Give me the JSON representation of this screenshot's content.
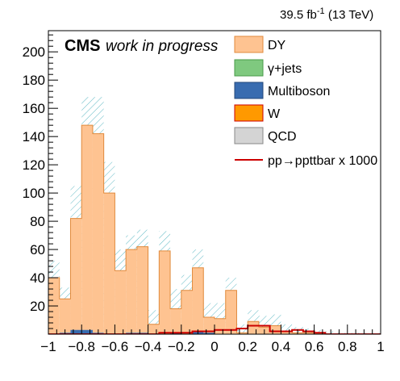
{
  "chart_data": {
    "type": "bar",
    "lumi_text": "39.5 fb",
    "lumi_exp": "-1",
    "lumi_energy": "(13 TeV)",
    "cms_label": "CMS",
    "cms_extra": "work in progress",
    "x_range": [
      -1,
      1
    ],
    "y_range": [
      0,
      215
    ],
    "x_ticks": [
      -1,
      -0.8,
      -0.6,
      -0.4,
      -0.2,
      0,
      0.2,
      0.4,
      0.6,
      0.8,
      1
    ],
    "x_tick_labels": [
      "−1",
      "−0.8",
      "−0.6",
      "−0.4",
      "−0.2",
      "0",
      "0.2",
      "0.4",
      "0.6",
      "0.8",
      "1"
    ],
    "y_ticks": [
      20,
      40,
      60,
      80,
      100,
      120,
      140,
      160,
      180,
      200
    ],
    "y_tick_labels": [
      "20",
      "40",
      "60",
      "80",
      "100",
      "120",
      "140",
      "160",
      "180",
      "200"
    ],
    "bin_edges": [
      -1.0,
      -0.9333,
      -0.8667,
      -0.8,
      -0.7333,
      -0.6667,
      -0.6,
      -0.5333,
      -0.4667,
      -0.4,
      -0.3333,
      -0.2667,
      -0.2,
      -0.1333,
      -0.0667,
      0.0,
      0.0667,
      0.1333,
      0.2,
      0.2667,
      0.3333,
      0.4,
      0.4667,
      0.5333,
      0.6,
      0.6667,
      0.7333,
      0.8,
      0.8667,
      0.9333,
      1.0
    ],
    "stack_total": [
      40,
      25,
      82,
      148,
      142,
      100,
      45,
      60,
      62,
      7,
      59,
      18,
      31,
      47,
      12,
      11,
      31,
      1,
      9,
      5,
      6,
      2,
      1,
      1,
      1,
      0,
      0,
      0,
      0,
      0
    ],
    "uncertainty_high": [
      52,
      33,
      105,
      168,
      168,
      122,
      60,
      70,
      74,
      17,
      73,
      32,
      42,
      60,
      22,
      22,
      40,
      7,
      17,
      13,
      14,
      7,
      5,
      4,
      3,
      2,
      1,
      1,
      1,
      1
    ],
    "series": [
      {
        "name": "DY",
        "color": "#fec391",
        "edge": "#e08a3c"
      },
      {
        "name": "γ+jets",
        "color": "#7fc97f",
        "edge": "#4a9a4a"
      },
      {
        "name": "Multiboson",
        "color": "#386cb0",
        "edge": "#24497a",
        "values": [
          0,
          1,
          3,
          3,
          1,
          0,
          0,
          1,
          1,
          0,
          0,
          1,
          0,
          2,
          1,
          0,
          0,
          0,
          0,
          0,
          0,
          0,
          0,
          0,
          0,
          0,
          0,
          0,
          0,
          0
        ]
      },
      {
        "name": "W",
        "color": "#ff9900",
        "edge": "#cc0000"
      },
      {
        "name": "QCD",
        "color": "#d4d4d4",
        "edge": "#888888"
      }
    ],
    "signal": {
      "name": "pp→ppttbar x 1000",
      "color": "#cc0000",
      "values": [
        0,
        0,
        0,
        0,
        0,
        0,
        0,
        0,
        0,
        0,
        1,
        1,
        1,
        2,
        2,
        3,
        3,
        4,
        6,
        6,
        2,
        2,
        3,
        2,
        1,
        0,
        0,
        0,
        0,
        0
      ]
    },
    "uncertainty_color": "#5fb9c4"
  }
}
